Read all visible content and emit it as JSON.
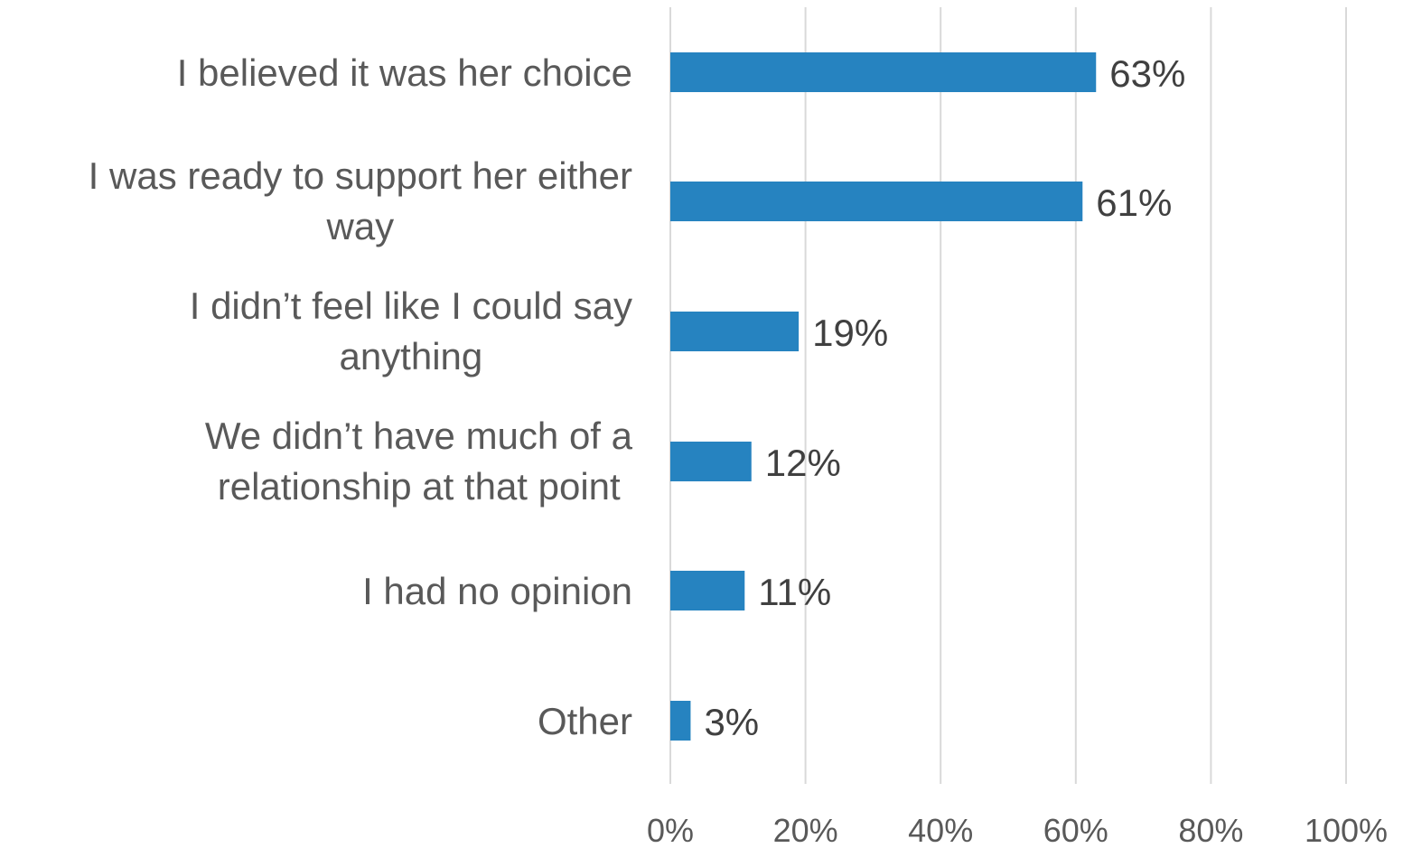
{
  "chart_data": {
    "type": "bar",
    "orientation": "horizontal",
    "categories": [
      [
        "I believed it was her choice"
      ],
      [
        "I was ready to support her either",
        "way"
      ],
      [
        "I didn’t feel like I could say",
        "anything"
      ],
      [
        "We didn’t have much of a",
        "relationship at that point"
      ],
      [
        "I had no opinion"
      ],
      [
        "Other"
      ]
    ],
    "values": [
      63,
      61,
      19,
      12,
      11,
      3
    ],
    "value_labels": [
      "63%",
      "61%",
      "19%",
      "12%",
      "11%",
      "3%"
    ],
    "title": "",
    "xlabel": "",
    "ylabel": "",
    "xlim": [
      0,
      100
    ],
    "x_ticks": [
      0,
      20,
      40,
      60,
      80,
      100
    ],
    "x_tick_labels": [
      "0%",
      "20%",
      "40%",
      "60%",
      "80%",
      "100%"
    ],
    "grid": true,
    "legend": "none",
    "bar_color": "#2683C0"
  }
}
